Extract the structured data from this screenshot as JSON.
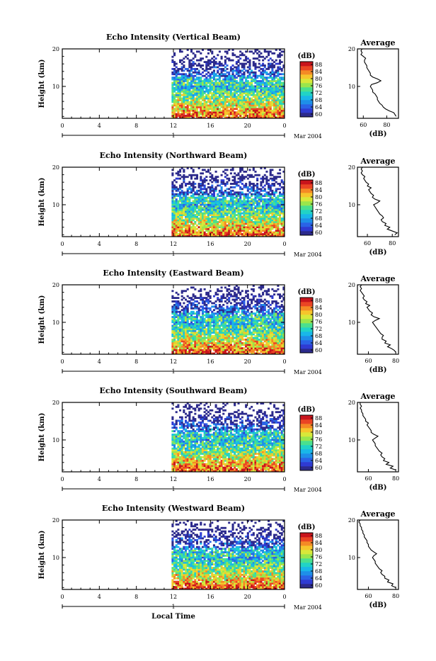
{
  "chart_data": [
    {
      "type": "heatmap",
      "title": "Echo Intensity (Vertical Beam)",
      "ylabel": "Height (km)",
      "x_ticks": [
        "0",
        "4",
        "8",
        "12",
        "16",
        "20",
        "0"
      ],
      "xlim_hours": [
        0,
        24
      ],
      "ylim": [
        1.5,
        20
      ],
      "y_ticks": [
        "20",
        "10"
      ],
      "date_marker": "1",
      "date_label": "Mar 2004",
      "data_start_hour": 11.8,
      "colorbar": {
        "unit": "(dB)",
        "ticks": [
          "88",
          "84",
          "80",
          "76",
          "72",
          "68",
          "64",
          "60"
        ],
        "range": [
          58,
          90
        ]
      },
      "average_profile": {
        "title": "Average",
        "xlabel": "(dB)",
        "x_ticks": [
          "60",
          "80"
        ],
        "xlim": [
          55,
          90
        ],
        "y_ticks": [
          "20",
          "10"
        ],
        "height": [
          2,
          2.5,
          3,
          3.5,
          4,
          4.5,
          5,
          5.5,
          6,
          6.5,
          7,
          7.5,
          8,
          8.5,
          9,
          9.5,
          10,
          10.5,
          11,
          11.5,
          12,
          12.5,
          13,
          13.5,
          14,
          14.5,
          15,
          15.5,
          16,
          16.5,
          17,
          17.5,
          18,
          18.5,
          19,
          19.5,
          20
        ],
        "value": [
          88,
          87,
          86,
          82,
          79,
          77,
          76,
          74,
          73,
          72,
          72,
          71,
          70,
          68,
          68,
          67,
          66,
          67,
          72,
          75,
          72,
          68,
          66,
          66,
          65,
          64,
          63,
          63,
          62,
          61,
          61,
          62,
          60,
          58,
          59,
          58,
          59
        ]
      }
    },
    {
      "type": "heatmap",
      "title": "Echo Intensity (Northward Beam)",
      "ylabel": "Height (km)",
      "x_ticks": [
        "0",
        "4",
        "8",
        "12",
        "16",
        "20",
        "0"
      ],
      "xlim_hours": [
        0,
        24
      ],
      "ylim": [
        1.5,
        20
      ],
      "y_ticks": [
        "20",
        "10"
      ],
      "date_marker": "1",
      "date_label": "Mar 2004",
      "data_start_hour": 11.8,
      "colorbar": {
        "unit": "(dB)",
        "ticks": [
          "88",
          "84",
          "80",
          "76",
          "72",
          "68",
          "64",
          "60"
        ],
        "range": [
          58,
          90
        ]
      },
      "average_profile": {
        "title": "Average",
        "xlabel": "(dB)",
        "x_ticks": [
          "60",
          "80"
        ],
        "xlim": [
          52,
          85
        ],
        "y_ticks": [
          "20",
          "10"
        ],
        "height": [
          2,
          2.5,
          3,
          3.5,
          4,
          4.5,
          5,
          5.5,
          6,
          6.5,
          7,
          7.5,
          8,
          8.5,
          9,
          9.5,
          10,
          10.5,
          11,
          11.5,
          12,
          12.5,
          13,
          13.5,
          14,
          14.5,
          15,
          15.5,
          16,
          16.5,
          17,
          17.5,
          18,
          18.5,
          19,
          19.5,
          20
        ],
        "value": [
          82,
          84,
          80,
          76,
          78,
          74,
          75,
          72,
          71,
          73,
          72,
          70,
          69,
          68,
          67,
          66,
          65,
          68,
          70,
          66,
          64,
          65,
          63,
          62,
          61,
          63,
          60,
          61,
          59,
          58,
          57,
          58,
          56,
          55,
          56,
          55,
          56
        ]
      }
    },
    {
      "type": "heatmap",
      "title": "Echo Intensity (Eastward Beam)",
      "ylabel": "Height (km)",
      "x_ticks": [
        "0",
        "4",
        "8",
        "12",
        "16",
        "20",
        "0"
      ],
      "xlim_hours": [
        0,
        24
      ],
      "ylim": [
        1.5,
        20
      ],
      "y_ticks": [
        "20",
        "10"
      ],
      "date_marker": "1",
      "date_label": "Mar 2004",
      "data_start_hour": 11.8,
      "colorbar": {
        "unit": "(dB)",
        "ticks": [
          "88",
          "84",
          "80",
          "76",
          "72",
          "68",
          "64",
          "60"
        ],
        "range": [
          58,
          90
        ]
      },
      "average_profile": {
        "title": "Average",
        "xlabel": "(dB)",
        "x_ticks": [
          "60",
          "80"
        ],
        "xlim": [
          52,
          82
        ],
        "y_ticks": [
          "20",
          "10"
        ],
        "height": [
          2,
          2.5,
          3,
          3.5,
          4,
          4.5,
          5,
          5.5,
          6,
          6.5,
          7,
          7.5,
          8,
          8.5,
          9,
          9.5,
          10,
          10.5,
          11,
          11.5,
          12,
          12.5,
          13,
          13.5,
          14,
          14.5,
          15,
          15.5,
          16,
          16.5,
          17,
          17.5,
          18,
          18.5,
          19,
          19.5,
          20
        ],
        "value": [
          80,
          79,
          77,
          74,
          76,
          72,
          73,
          70,
          70,
          71,
          69,
          68,
          67,
          66,
          65,
          64,
          63,
          65,
          68,
          64,
          62,
          63,
          61,
          60,
          59,
          61,
          58,
          59,
          57,
          56,
          57,
          56,
          55,
          54,
          55,
          54,
          55
        ]
      }
    },
    {
      "type": "heatmap",
      "title": "Echo Intensity (Southward Beam)",
      "ylabel": "Height (km)",
      "x_ticks": [
        "0",
        "4",
        "8",
        "12",
        "16",
        "20",
        "0"
      ],
      "xlim_hours": [
        0,
        24
      ],
      "ylim": [
        1.5,
        20
      ],
      "y_ticks": [
        "20",
        "10"
      ],
      "date_marker": "1",
      "date_label": "Mar 2004",
      "data_start_hour": 11.8,
      "colorbar": {
        "unit": "(dB)",
        "ticks": [
          "88",
          "84",
          "80",
          "76",
          "72",
          "68",
          "64",
          "60"
        ],
        "range": [
          58,
          90
        ]
      },
      "average_profile": {
        "title": "Average",
        "xlabel": "(dB)",
        "x_ticks": [
          "60",
          "80"
        ],
        "xlim": [
          52,
          82
        ],
        "y_ticks": [
          "20",
          "10"
        ],
        "height": [
          2,
          2.5,
          3,
          3.5,
          4,
          4.5,
          5,
          5.5,
          6,
          6.5,
          7,
          7.5,
          8,
          8.5,
          9,
          9.5,
          10,
          10.5,
          11,
          11.5,
          12,
          12.5,
          13,
          13.5,
          14,
          14.5,
          15,
          15.5,
          16,
          16.5,
          17,
          17.5,
          18,
          18.5,
          19,
          19.5,
          20
        ],
        "value": [
          80,
          76,
          78,
          73,
          75,
          71,
          72,
          70,
          69,
          70,
          68,
          67,
          66,
          65,
          65,
          64,
          63,
          65,
          67,
          64,
          62,
          62,
          61,
          60,
          59,
          60,
          58,
          58,
          57,
          56,
          56,
          55,
          55,
          54,
          55,
          54,
          54
        ]
      }
    },
    {
      "type": "heatmap",
      "title": "Echo Intensity (Westward Beam)",
      "ylabel": "Height (km)",
      "x_ticks": [
        "0",
        "4",
        "8",
        "12",
        "16",
        "20",
        "0"
      ],
      "xlim_hours": [
        0,
        24
      ],
      "ylim": [
        1.5,
        20
      ],
      "y_ticks": [
        "20",
        "10"
      ],
      "date_marker": "1",
      "date_label": "Mar 2004",
      "xlabel": "Local Time",
      "data_start_hour": 11.8,
      "colorbar": {
        "unit": "(dB)",
        "ticks": [
          "88",
          "84",
          "80",
          "76",
          "72",
          "68",
          "64",
          "60"
        ],
        "range": [
          58,
          90
        ]
      },
      "average_profile": {
        "title": "Average",
        "xlabel": "(dB)",
        "x_ticks": [
          "60",
          "80"
        ],
        "xlim": [
          52,
          82
        ],
        "y_ticks": [
          "20",
          "10"
        ],
        "height": [
          2,
          2.5,
          3,
          3.5,
          4,
          4.5,
          5,
          5.5,
          6,
          6.5,
          7,
          7.5,
          8,
          8.5,
          9,
          9.5,
          10,
          10.5,
          11,
          11.5,
          12,
          12.5,
          13,
          13.5,
          14,
          14.5,
          15,
          15.5,
          16,
          16.5,
          17,
          17.5,
          18,
          18.5,
          19,
          19.5,
          20
        ],
        "value": [
          80,
          77,
          78,
          74,
          75,
          72,
          72,
          70,
          69,
          70,
          68,
          67,
          66,
          65,
          65,
          64,
          63,
          64,
          66,
          64,
          62,
          61,
          60,
          60,
          59,
          59,
          58,
          57,
          57,
          56,
          56,
          55,
          55,
          54,
          54,
          53,
          54
        ]
      }
    }
  ],
  "colors": {
    "axes": "#000000",
    "colormap": [
      "#2c2a8c",
      "#2f3bd2",
      "#2a63e6",
      "#1e8fe8",
      "#19b7e8",
      "#21d3c6",
      "#4ae08f",
      "#9ae64c",
      "#d8e83a",
      "#f6c52c",
      "#f58a25",
      "#ea4524",
      "#c8141c"
    ]
  }
}
